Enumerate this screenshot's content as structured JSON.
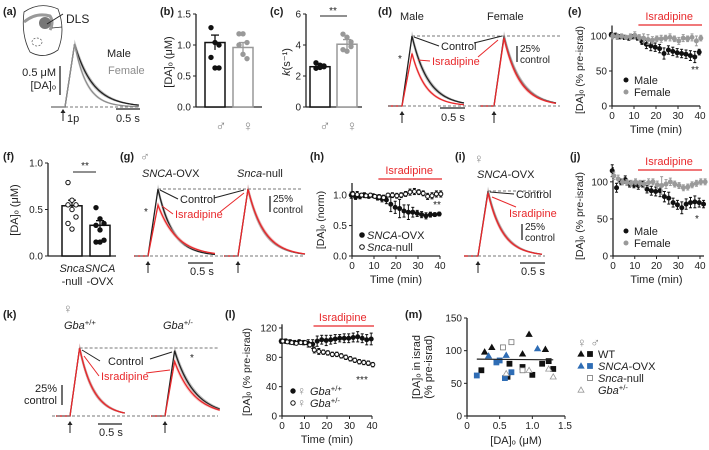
{
  "chart_data": [
    {
      "panel": "a",
      "label": "(a)",
      "type": "line",
      "region_label": "DLS",
      "series": [
        {
          "name": "Male",
          "peak_uM": 1.0,
          "tau_s": 0.38,
          "color": "#222222"
        },
        {
          "name": "Female",
          "peak_uM": 1.0,
          "tau_s": 0.26,
          "color": "#8c8c8c"
        }
      ],
      "stim_label": "1p",
      "scale_y": "0.5 μM",
      "scale_y_unit": "[DA]ₒ",
      "scale_x": "0.5 s"
    },
    {
      "panel": "b",
      "label": "(b)",
      "type": "bar",
      "categories": [
        "♂",
        "♀"
      ],
      "values": [
        1.04,
        0.96
      ],
      "sem": [
        0.12,
        0.08
      ],
      "points": [
        [
          1.28,
          1.04,
          1.0,
          0.8,
          0.63,
          0.63
        ],
        [
          1.18,
          1.18,
          1.04,
          1.0,
          0.85,
          0.78
        ]
      ],
      "ylabel": "[DA]ₒ (μM)",
      "ylim": [
        0,
        1.5
      ],
      "yticks": [
        "0.0",
        "0.5",
        "1.0",
        "1.5"
      ]
    },
    {
      "panel": "c",
      "label": "(c)",
      "type": "bar",
      "categories": [
        "♂",
        "♀"
      ],
      "values": [
        2.6,
        4.05
      ],
      "sem": [
        0.15,
        0.3
      ],
      "points": [
        [
          2.85,
          2.7,
          2.65,
          2.5,
          2.55,
          2.6
        ],
        [
          4.7,
          4.5,
          4.2,
          3.7,
          3.6,
          3.9
        ]
      ],
      "ylabel_symbol": "k",
      "ylabel": "(s⁻¹)",
      "ylim": [
        0,
        6
      ],
      "yticks": [
        "0",
        "2",
        "4",
        "6"
      ],
      "significance": "**"
    },
    {
      "panel": "d",
      "label": "(d)",
      "type": "line",
      "groups": [
        {
          "title": "Male",
          "series": [
            {
              "name": "Control",
              "peak": 100,
              "tau_s": 0.33
            },
            {
              "name": "Isradipine",
              "peak": 75,
              "tau_s": 0.28
            }
          ]
        },
        {
          "title": "Female",
          "series": [
            {
              "name": "Control",
              "peak": 100,
              "tau_s": 0.33
            },
            {
              "name": "Isradipine",
              "peak": 97,
              "tau_s": 0.32
            }
          ]
        }
      ],
      "legend": [
        "Control",
        "Isradipine"
      ],
      "significance": "*",
      "scale_y": "25%",
      "scale_y2": "control",
      "scale_x": "0.5 s"
    },
    {
      "panel": "e",
      "label": "(e)",
      "type": "scatter",
      "drug_label": "Isradipine",
      "drug_start_min": 12,
      "x": [
        0,
        2,
        4,
        6,
        8,
        10,
        12,
        14,
        16,
        18,
        20,
        22,
        24,
        26,
        28,
        30,
        32,
        34,
        36,
        38,
        40
      ],
      "series": [
        {
          "name": "Male",
          "color": "#111111",
          "values": [
            102,
            101,
            99,
            98,
            97,
            99,
            97,
            92,
            88,
            86,
            84,
            82,
            75,
            80,
            78,
            76,
            75,
            74,
            72,
            70,
            77
          ],
          "sem": [
            3,
            3,
            3,
            3,
            3,
            3,
            3,
            4,
            6,
            7,
            6,
            6,
            8,
            6,
            6,
            6,
            6,
            6,
            7,
            8,
            4
          ]
        },
        {
          "name": "Female",
          "color": "#9a9a9a",
          "values": [
            100,
            99,
            100,
            98,
            99,
            101,
            98,
            97,
            95,
            94,
            96,
            96,
            97,
            98,
            96,
            93,
            97,
            96,
            98,
            93,
            97
          ],
          "sem": [
            4,
            4,
            3,
            3,
            4,
            5,
            4,
            6,
            7,
            5,
            4,
            5,
            4,
            5,
            4,
            5,
            5,
            4,
            5,
            7,
            4
          ]
        }
      ],
      "xlabel": "Time (min)",
      "ylabel": "[DA]ₒ (% pre-israd)",
      "xlim": [
        0,
        40
      ],
      "ylim": [
        0,
        115
      ],
      "xticks": [
        "0",
        "10",
        "20",
        "30",
        "40"
      ],
      "yticks": [
        "0",
        "50",
        "100"
      ],
      "significance": "**"
    },
    {
      "panel": "f",
      "label": "(f)",
      "type": "bar",
      "categories": [
        [
          "Snca",
          "-null"
        ],
        [
          "SNCA",
          "-OVX"
        ]
      ],
      "values": [
        0.54,
        0.33
      ],
      "sem": [
        0.06,
        0.05
      ],
      "points": [
        [
          0.79,
          0.6,
          0.55,
          0.55,
          0.5,
          0.42,
          0.35,
          0.29
        ],
        [
          0.52,
          0.4,
          0.35,
          0.33,
          0.28,
          0.17,
          0.15,
          0.15
        ]
      ],
      "ylabel": "[DA]ₒ (μM)",
      "ylim": [
        0,
        1.0
      ],
      "yticks": [
        "0.0",
        "0.5",
        "1.0"
      ],
      "significance": "**"
    },
    {
      "panel": "g",
      "label": "(g)",
      "sex": "♂",
      "type": "line",
      "groups": [
        {
          "title_italic": "SNCA",
          "title": "-OVX",
          "series": [
            {
              "name": "Control",
              "peak": 100,
              "tau_s": 0.3
            },
            {
              "name": "Isradipine",
              "peak": 76,
              "tau_s": 0.38
            }
          ]
        },
        {
          "title_italic": "Snca",
          "title": "-null",
          "series": [
            {
              "name": "Control",
              "peak": 100,
              "tau_s": 0.32
            },
            {
              "name": "Isradipine",
              "peak": 100,
              "tau_s": 0.33
            }
          ]
        }
      ],
      "legend": [
        "Control",
        "Isradipine"
      ],
      "significance": "*",
      "scale_y": "25%",
      "scale_y2": "control",
      "scale_x": "0.5 s"
    },
    {
      "panel": "h",
      "label": "(h)",
      "type": "scatter",
      "drug_label": "Isradipine",
      "drug_start_min": 12,
      "x": [
        0,
        2,
        4,
        6,
        8,
        10,
        12,
        14,
        16,
        18,
        20,
        22,
        24,
        26,
        28,
        30,
        32,
        34,
        36,
        38,
        40
      ],
      "series": [
        {
          "name_italic": "SNCA",
          "name": "-OVX",
          "filled": true,
          "values": [
            1.0,
            0.97,
            0.98,
            1.0,
            0.98,
            0.99,
            0.96,
            0.94,
            0.92,
            0.85,
            0.8,
            0.78,
            0.74,
            0.72,
            0.72,
            0.7,
            0.68,
            0.66,
            0.68,
            0.68,
            0.69
          ],
          "sem": [
            0.05,
            0.04,
            0.04,
            0.04,
            0.03,
            0.03,
            0.04,
            0.05,
            0.06,
            0.12,
            0.1,
            0.15,
            0.1,
            0.12,
            0.08,
            0.05,
            0.05,
            0.05,
            0.04,
            0.03,
            0.03
          ]
        },
        {
          "name_italic": "Snca",
          "name": "-null",
          "filled": false,
          "values": [
            1.02,
            1.01,
            1.0,
            0.99,
            1.0,
            0.98,
            0.97,
            0.96,
            1.0,
            1.0,
            0.99,
            1.0,
            1.02,
            1.05,
            1.06,
            1.05,
            1.03,
            0.98,
            0.99,
            1.02,
            1.02
          ],
          "sem": [
            0.04,
            0.05,
            0.03,
            0.03,
            0.03,
            0.03,
            0.04,
            0.04,
            0.03,
            0.04,
            0.04,
            0.04,
            0.04,
            0.05,
            0.05,
            0.04,
            0.04,
            0.05,
            0.05,
            0.05,
            0.05
          ]
        }
      ],
      "xlabel": "Time (min)",
      "ylabel": "[DA]ₒ (norm)",
      "xlim": [
        0,
        40
      ],
      "ylim": [
        0,
        1.2
      ],
      "xticks": [
        "0",
        "10",
        "20",
        "30",
        "40"
      ],
      "yticks": [
        "0.0",
        "0.5",
        "1.0"
      ],
      "significance": "**"
    },
    {
      "panel": "i",
      "label": "(i)",
      "sex": "♀",
      "type": "line",
      "groups": [
        {
          "title_italic": "SNCA",
          "title": "-OVX",
          "series": [
            {
              "name": "Control",
              "peak": 100,
              "tau_s": 0.3
            },
            {
              "name": "Isradipine",
              "peak": 97,
              "tau_s": 0.3
            }
          ]
        }
      ],
      "legend": [
        "Control",
        "Isradipine"
      ],
      "scale_y": "25%",
      "scale_y2": "control",
      "scale_x": "0.5 s"
    },
    {
      "panel": "j",
      "label": "(j)",
      "type": "scatter",
      "drug_label": "Isradipine",
      "drug_start_min": 11.5,
      "x": [
        0,
        2,
        4,
        6,
        8,
        10,
        12,
        14,
        16,
        18,
        20,
        22,
        24,
        26,
        28,
        30,
        32,
        34,
        36,
        38,
        40,
        42
      ],
      "series": [
        {
          "name": "Male",
          "color": "#111111",
          "values": [
            115,
            92,
            100,
            103,
            97,
            96,
            95,
            97,
            90,
            88,
            87,
            88,
            80,
            78,
            72,
            69,
            65,
            70,
            72,
            73,
            72,
            70
          ],
          "sem": [
            8,
            6,
            4,
            5,
            4,
            4,
            5,
            4,
            5,
            6,
            6,
            8,
            7,
            8,
            6,
            6,
            8,
            7,
            7,
            8,
            6,
            5
          ]
        },
        {
          "name": "Female",
          "color": "#9a9a9a",
          "values": [
            108,
            104,
            100,
            99,
            98,
            100,
            98,
            97,
            99,
            100,
            96,
            95,
            97,
            100,
            97,
            95,
            92,
            93,
            96,
            98,
            100,
            100
          ],
          "sem": [
            5,
            5,
            4,
            4,
            4,
            4,
            4,
            5,
            5,
            4,
            5,
            12,
            6,
            5,
            4,
            4,
            4,
            4,
            4,
            4,
            4,
            4
          ]
        }
      ],
      "xlabel": "Time (min)",
      "ylabel": "[DA]ₒ (% pre-israd)",
      "xlim": [
        0,
        40
      ],
      "ylim": [
        0,
        120
      ],
      "xticks": [
        "0",
        "10",
        "20",
        "30",
        "40"
      ],
      "yticks": [
        "0",
        "50",
        "100"
      ],
      "significance": "*"
    },
    {
      "panel": "k",
      "label": "(k)",
      "sex": "♀",
      "type": "line",
      "groups": [
        {
          "title_italic": "Gba",
          "title_sup": "+/+",
          "series": [
            {
              "name": "Control",
              "peak": 100,
              "tau_s": 0.3
            },
            {
              "name": "Isradipine",
              "peak": 100,
              "tau_s": 0.3
            }
          ]
        },
        {
          "title_italic": "Gba",
          "title_sup": "+/-",
          "series": [
            {
              "name": "Control",
              "peak": 96,
              "tau_s": 0.42
            },
            {
              "name": "Isradipine",
              "peak": 80,
              "tau_s": 0.42
            }
          ]
        }
      ],
      "legend": [
        "Control",
        "Isradipine"
      ],
      "significance": "*",
      "scale_y": "25%",
      "scale_y2": "control",
      "scale_x": "0.5 s"
    },
    {
      "panel": "l",
      "label": "(l)",
      "type": "scatter",
      "drug_label": "Isradipine",
      "drug_start_min": 14,
      "x": [
        0,
        2,
        4,
        6,
        8,
        10,
        12,
        14,
        16,
        18,
        20,
        22,
        24,
        26,
        28,
        30,
        32,
        34,
        36,
        38,
        40
      ],
      "series": [
        {
          "sex": "♀",
          "name_italic": "Gba",
          "name_sup": "+/+",
          "filled": true,
          "values": [
            102,
            102,
            101,
            100,
            101,
            100,
            99,
            98,
            102,
            104,
            103,
            104,
            105,
            106,
            106,
            106,
            107,
            108,
            106,
            104,
            105
          ],
          "sem": [
            3,
            3,
            3,
            3,
            3,
            3,
            5,
            6,
            7,
            6,
            7,
            6,
            6,
            5,
            6,
            6,
            6,
            7,
            6,
            7,
            8
          ]
        },
        {
          "sex": "♀",
          "name_italic": "Gba",
          "name_sup": "+/-",
          "filled": false,
          "values": [
            102,
            101,
            100,
            99,
            100,
            100,
            97,
            90,
            88,
            87,
            86,
            84,
            84,
            82,
            80,
            78,
            76,
            74,
            73,
            72,
            70
          ],
          "sem": [
            2,
            2,
            2,
            2,
            2,
            2,
            3,
            4,
            4,
            3,
            3,
            3,
            3,
            3,
            3,
            3,
            3,
            3,
            3,
            3,
            3
          ]
        }
      ],
      "xlabel": "Time (min)",
      "ylabel": "[DA]ₒ (% pre-israd)",
      "xlim": [
        0,
        40
      ],
      "ylim": [
        0,
        125
      ],
      "xticks": [
        "0",
        "10",
        "20",
        "30",
        "40"
      ],
      "yticks": [
        "0",
        "40",
        "80",
        "120"
      ],
      "significance": "***"
    },
    {
      "panel": "m",
      "label": "(m)",
      "type": "scatter",
      "xlabel": "[DA]ₒ (μM)",
      "ylabel": [
        "[DA]ₒ in israd",
        "(% pre-israd)"
      ],
      "xlim": [
        0,
        1.5
      ],
      "ylim": [
        0,
        150
      ],
      "xticks": [
        "0",
        "0.5",
        "1.0",
        "1.5"
      ],
      "yticks": [
        "0",
        "50",
        "100",
        "150"
      ],
      "legend_header": "♀ ♂",
      "groups": [
        {
          "name": "WT",
          "color": "#111111",
          "female": [
            [
              0.27,
              98
            ],
            [
              0.38,
              105
            ],
            [
              0.85,
              95
            ],
            [
              0.95,
              125
            ],
            [
              1.2,
              102
            ]
          ],
          "male": [
            [
              0.22,
              70
            ],
            [
              0.62,
              60
            ],
            [
              0.65,
              80
            ],
            [
              0.85,
              75
            ],
            [
              1.0,
              63
            ],
            [
              1.15,
              80
            ],
            [
              1.25,
              84
            ],
            [
              1.32,
              72
            ]
          ]
        },
        {
          "name_italic": "SNCA",
          "name": "-OVX",
          "color": "#2f6db5",
          "female": [
            [
              0.33,
              92
            ],
            [
              0.6,
              93
            ],
            [
              1.08,
              103
            ]
          ],
          "male": [
            [
              0.15,
              62
            ],
            [
              0.45,
              82
            ],
            [
              0.5,
              85
            ],
            [
              0.58,
              58
            ],
            [
              0.68,
              67
            ]
          ]
        },
        {
          "name_italic": "Snca",
          "name": "-null",
          "color": "#777777",
          "open": true,
          "male": [
            [
              0.55,
              105
            ],
            [
              0.68,
              113
            ],
            [
              0.85,
              70
            ]
          ]
        },
        {
          "name_italic": "Gba",
          "name_sup": "+/-",
          "color": "#999999",
          "open": true,
          "female": [
            [
              0.6,
              65
            ],
            [
              0.95,
              70
            ],
            [
              1.25,
              72
            ],
            [
              1.32,
              60
            ]
          ]
        }
      ],
      "regression": {
        "x": [
          0.15,
          1.32
        ],
        "y": [
          87,
          86
        ]
      }
    }
  ]
}
